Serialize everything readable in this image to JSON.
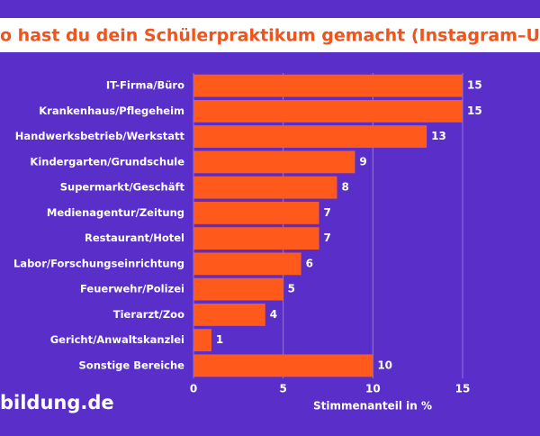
{
  "chart_data": {
    "type": "barh",
    "title": "o hast du dein Schülerpraktikum gemacht (Instagram–Umfrag",
    "categories": [
      "IT-Firma/Büro",
      "Krankenhaus/Pflegeheim",
      "Handwerksbetrieb/Werkstatt",
      "Kindergarten/Grundschule",
      "Supermarkt/Geschäft",
      "Medienagentur/Zeitung",
      "Restaurant/Hotel",
      "Labor/Forschungseinrichtung",
      "Feuerwehr/Polizei",
      "Tierarzt/Zoo",
      "Gericht/Anwaltskanzlei",
      "Sonstige Bereiche"
    ],
    "values": [
      15,
      15,
      13,
      9,
      8,
      7,
      7,
      6,
      5,
      4,
      1,
      10
    ],
    "color": "#ff5a1c",
    "xlim": [
      0,
      15
    ],
    "xticks": [
      0,
      5,
      10,
      15
    ],
    "grid": true,
    "xlabel": "Stimmenanteil in %",
    "logo": "bildung.de"
  }
}
